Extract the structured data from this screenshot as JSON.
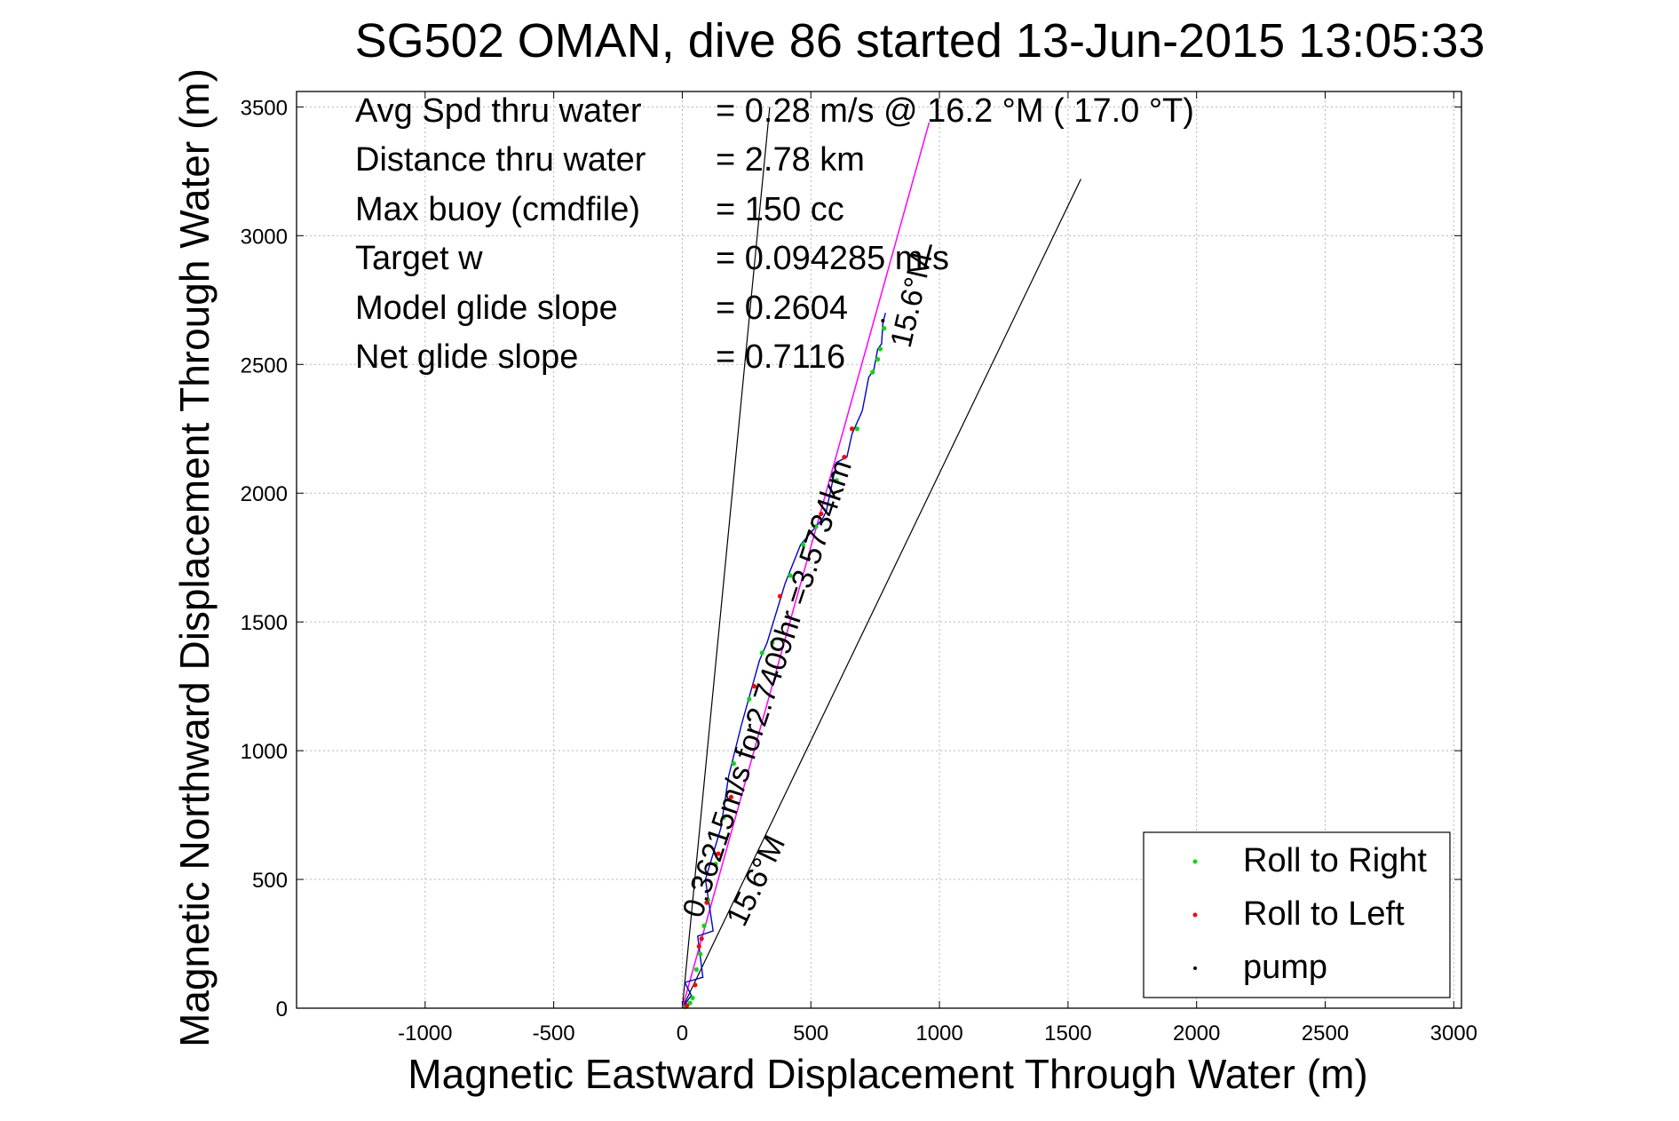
{
  "chart_data": {
    "type": "line",
    "title": "SG502 OMAN, dive 86 started 13-Jun-2015 13:05:33",
    "xlabel": "Magnetic Eastward Displacement Through Water (m)",
    "ylabel": "Magnetic Northward Displacement Through Water (m)",
    "xlim": [
      -1500,
      3030
    ],
    "ylim": [
      0,
      3560
    ],
    "xticks": [
      -1000,
      -500,
      0,
      500,
      1000,
      1500,
      2000,
      2500,
      3000
    ],
    "yticks": [
      0,
      500,
      1000,
      1500,
      2000,
      2500,
      3000,
      3500
    ],
    "grid": true,
    "stats": [
      {
        "label": "Avg Spd thru water",
        "value": "=  0.28 m/s @   16.2 °M ( 17.0 °T)"
      },
      {
        "label": "Distance thru water",
        "value": "=  2.78 km"
      },
      {
        "label": "Max buoy (cmdfile)",
        "value": "= 150 cc"
      },
      {
        "label": "Target w",
        "value": "= 0.094285 m/s"
      },
      {
        "label": "Model glide slope",
        "value": "= 0.2604"
      },
      {
        "label": "Net glide slope",
        "value": "= 0.7116"
      }
    ],
    "annotations": {
      "current_label": "0.36215m/s for2.7409hr =3.5734km",
      "heading_label_top": "15.6°M",
      "heading_label_bottom": "15.6°M"
    },
    "reference_lines": [
      {
        "x": [
          0,
          340
        ],
        "y": [
          0,
          3500
        ]
      },
      {
        "x": [
          0,
          1550
        ],
        "y": [
          0,
          3220
        ]
      }
    ],
    "current_vector": {
      "x": [
        0,
        960
      ],
      "y": [
        0,
        3440
      ]
    },
    "glide_track": {
      "x": [
        0,
        35,
        10,
        80,
        60,
        120,
        90,
        150,
        180,
        230,
        300,
        330,
        400,
        460,
        545,
        560,
        600,
        640,
        660,
        700,
        725,
        745,
        760,
        775,
        780,
        790
      ],
      "y": [
        0,
        50,
        100,
        120,
        280,
        300,
        500,
        700,
        900,
        1100,
        1350,
        1420,
        1650,
        1800,
        1900,
        1930,
        2120,
        2140,
        2230,
        2320,
        2450,
        2480,
        2560,
        2580,
        2660,
        2700
      ]
    },
    "series": [
      {
        "name": "Roll to Right",
        "color": "#00dd00",
        "x": [
          12,
          30,
          40,
          55,
          70,
          85,
          100,
          130,
          160,
          200,
          260,
          310,
          350,
          420,
          470,
          520,
          600,
          680,
          740,
          760,
          770,
          785
        ],
        "y": [
          5,
          20,
          40,
          150,
          210,
          320,
          420,
          560,
          740,
          950,
          1200,
          1380,
          1420,
          1680,
          1800,
          1870,
          2050,
          2250,
          2470,
          2520,
          2560,
          2640
        ]
      },
      {
        "name": "Roll to Left",
        "color": "#ff0000",
        "x": [
          18,
          50,
          65,
          75,
          95,
          140,
          190,
          280,
          380,
          540,
          630,
          660
        ],
        "y": [
          10,
          90,
          240,
          270,
          410,
          600,
          820,
          1250,
          1600,
          1920,
          2140,
          2250
        ]
      },
      {
        "name": "pump",
        "color": "#000000",
        "x": [
          780
        ],
        "y": [
          2670
        ]
      }
    ],
    "legend": {
      "position": "bottom-right"
    },
    "colors": {
      "current_vector": "#ff00ff",
      "track": "#0000cc",
      "reference": "#000000"
    }
  }
}
